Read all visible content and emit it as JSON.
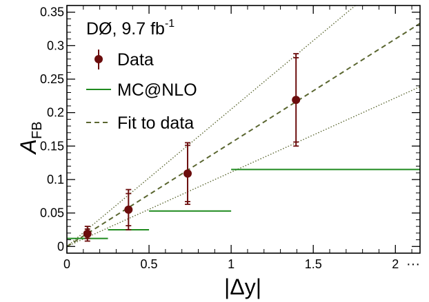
{
  "chart_data": {
    "type": "scatter",
    "ylabel_main": "A",
    "ylabel_sub": "FB",
    "xlabel": "|Δy|",
    "xlim": [
      0,
      2.15
    ],
    "ylim": [
      -0.01,
      0.36
    ],
    "x_ticks": [
      {
        "value": 0,
        "label": "0"
      },
      {
        "value": 0.5,
        "label": "0.5"
      },
      {
        "value": 1,
        "label": "1"
      },
      {
        "value": 1.5,
        "label": "1.5"
      },
      {
        "value": 2,
        "label": "2"
      }
    ],
    "x_axis_ellipsis": "···",
    "y_ticks": [
      {
        "value": 0,
        "label": "0"
      },
      {
        "value": 0.05,
        "label": "0.05"
      },
      {
        "value": 0.1,
        "label": "0.1"
      },
      {
        "value": 0.15,
        "label": "0.15"
      },
      {
        "value": 0.2,
        "label": "0.2"
      },
      {
        "value": 0.25,
        "label": "0.25"
      },
      {
        "value": 0.3,
        "label": "0.3"
      },
      {
        "value": 0.35,
        "label": "0.35"
      }
    ],
    "experiment_label": "DØ, 9.7 fb",
    "experiment_label_sup": "-1",
    "series": [
      {
        "name": "Data",
        "kind": "points",
        "color": "#6b0d0d",
        "points": [
          {
            "x": 0.125,
            "y": 0.019,
            "err_stat": 0.007,
            "err_tot": 0.011
          },
          {
            "x": 0.375,
            "y": 0.055,
            "err_stat": 0.024,
            "err_tot": 0.03
          },
          {
            "x": 0.735,
            "y": 0.109,
            "err_stat": 0.042,
            "err_tot": 0.046
          },
          {
            "x": 1.395,
            "y": 0.219,
            "err_stat": 0.063,
            "err_tot": 0.069
          }
        ]
      },
      {
        "name": "MC@NLO",
        "kind": "steps",
        "color": "#1e8a1e",
        "bins": [
          {
            "x0": 0,
            "x1": 0.25,
            "y": 0.012
          },
          {
            "x0": 0.25,
            "x1": 0.5,
            "y": 0.025
          },
          {
            "x0": 0.5,
            "x1": 1.0,
            "y": 0.053
          },
          {
            "x0": 1.0,
            "x1": 2.15,
            "y": 0.115
          }
        ]
      },
      {
        "name": "Fit to data",
        "kind": "line",
        "color": "#5a6630",
        "slope": 0.155,
        "band_slopes": [
          0.205,
          0.111
        ]
      }
    ]
  }
}
